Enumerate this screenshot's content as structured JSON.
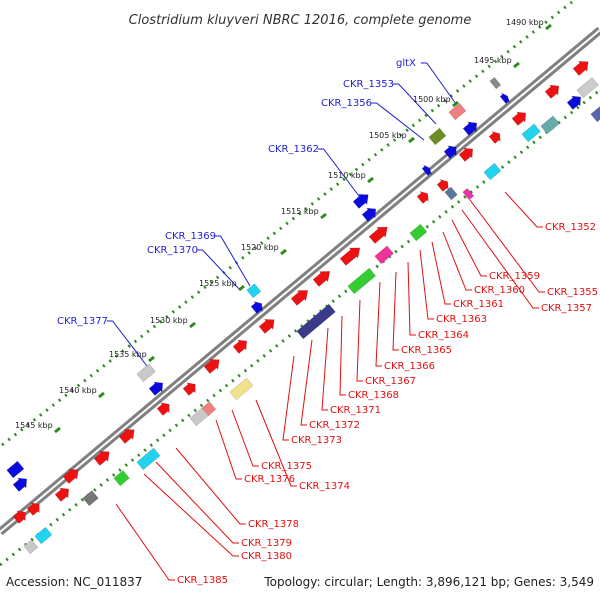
{
  "header": {
    "title": "Clostridium kluyveri NBRC 12016, complete genome"
  },
  "footer": {
    "accession": "Accession: NC_011837",
    "topology": "Topology: circular; Length: 3,896,121 bp; Genes: 3,549"
  },
  "colors": {
    "backbone": "#808080",
    "tick_green": "#2e8b1e",
    "forward_label": "#1f1fd0",
    "reverse_label": "#e01010",
    "gene_red": "#ee1111",
    "gene_blue": "#0b0bdd",
    "gene_grey": "#c8c8c8",
    "gene_cyan": "#22d3ee",
    "gene_green": "#33cc33",
    "gene_navy": "#3a3a8c",
    "gene_pink": "#ee3399",
    "gene_olive": "#6b8e23",
    "gene_khaki": "#f0e28c",
    "gene_salmon": "#f08080"
  },
  "ticks": [
    {
      "label": "1490 kbp"
    },
    {
      "label": "1495 kbp"
    },
    {
      "label": "1500 kbp"
    },
    {
      "label": "1505 kbp"
    },
    {
      "label": "1510 kbp"
    },
    {
      "label": "1515 kbp"
    },
    {
      "label": "1520 kbp"
    },
    {
      "label": "1525 kbp"
    },
    {
      "label": "1530 kbp"
    },
    {
      "label": "1535 kbp"
    },
    {
      "label": "1540 kbp"
    },
    {
      "label": "1545 kbp"
    }
  ],
  "forward_labels": [
    {
      "text": "gltX"
    },
    {
      "text": "CKR_1353"
    },
    {
      "text": "CKR_1356"
    },
    {
      "text": "CKR_1362"
    },
    {
      "text": "CKR_1369"
    },
    {
      "text": "CKR_1370"
    },
    {
      "text": "CKR_1377"
    }
  ],
  "reverse_labels": [
    {
      "text": "CKR_1352"
    },
    {
      "text": "CKR_1355"
    },
    {
      "text": "CKR_1357"
    },
    {
      "text": "CKR_1359"
    },
    {
      "text": "CKR_1360"
    },
    {
      "text": "CKR_1361"
    },
    {
      "text": "CKR_1363"
    },
    {
      "text": "CKR_1364"
    },
    {
      "text": "CKR_1365"
    },
    {
      "text": "CKR_1366"
    },
    {
      "text": "CKR_1367"
    },
    {
      "text": "CKR_1368"
    },
    {
      "text": "CKR_1371"
    },
    {
      "text": "CKR_1372"
    },
    {
      "text": "CKR_1373"
    },
    {
      "text": "CKR_1374"
    },
    {
      "text": "CKR_1375"
    },
    {
      "text": "CKR_1376"
    },
    {
      "text": "CKR_1378"
    },
    {
      "text": "CKR_1379"
    },
    {
      "text": "CKR_1380"
    },
    {
      "text": "CKR_1385"
    }
  ]
}
